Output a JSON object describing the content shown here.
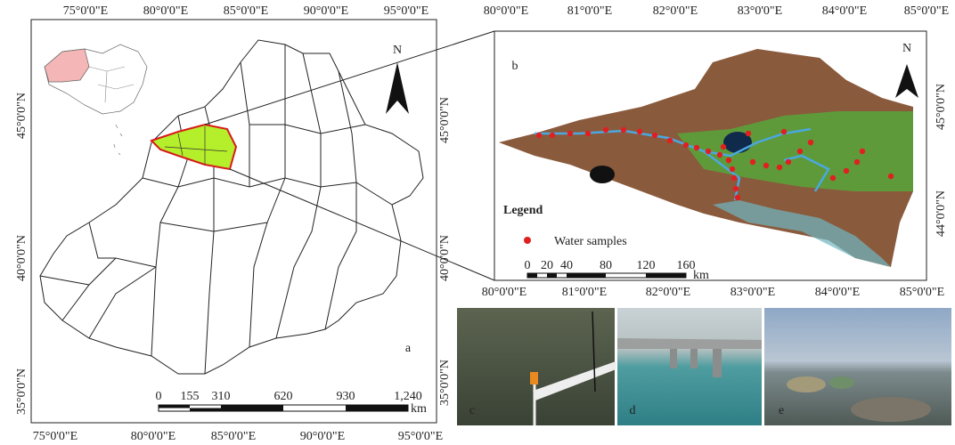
{
  "panel_a": {
    "label": "a",
    "north": "N",
    "lon_top": [
      "75°0'0\"E",
      "80°0'0\"E",
      "85°0'0\"E",
      "90°0'0\"E",
      "95°0'0\"E"
    ],
    "lon_bottom": [
      "75°0'0\"E",
      "80°0'0\"E",
      "85°0'0\"E",
      "90°0'0\"E",
      "95°0'0\"E"
    ],
    "lat_left": [
      "45°0'0\"N",
      "40°0'0\"N",
      "35°0'0\"N"
    ],
    "lat_right": [
      "45°0'0\"N",
      "40°0'0\"N",
      "35°0'0\"N"
    ],
    "scale": {
      "ticks": [
        "0",
        "155",
        "310",
        "620",
        "930",
        "1,240"
      ],
      "unit": "km"
    }
  },
  "panel_b": {
    "label": "b",
    "north": "N",
    "lon_top": [
      "80°0'0\"E",
      "81°0'0\"E",
      "82°0'0\"E",
      "83°0'0\"E",
      "84°0'0\"E",
      "85°0'0\"E"
    ],
    "lon_bottom": [
      "80°0'0\"E",
      "81°0'0\"E",
      "82°0'0\"E",
      "83°0'0\"E",
      "84°0'0\"E",
      "85°0'0\"E"
    ],
    "lat_right": [
      "45°0'0\"N",
      "44°0'0\"N"
    ],
    "legend": {
      "title": "Legend",
      "item": "Water samples"
    },
    "scale": {
      "ticks": [
        "0",
        "20",
        "40",
        "80",
        "120",
        "160"
      ],
      "unit": "km"
    }
  },
  "photos": [
    {
      "label": "c"
    },
    {
      "label": "d"
    },
    {
      "label": "e"
    }
  ]
}
